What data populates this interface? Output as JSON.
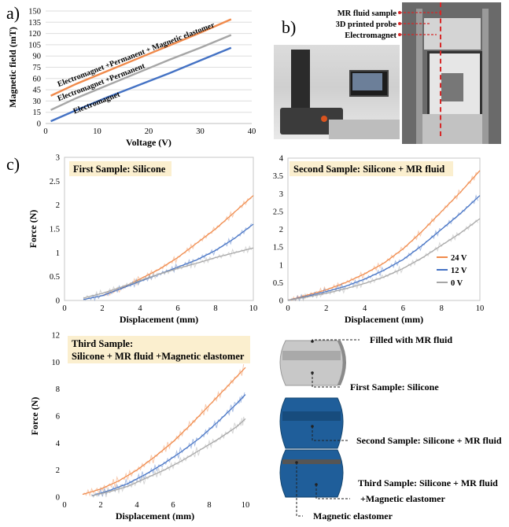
{
  "panels": {
    "a": "a)",
    "b": "b)",
    "c": "c)"
  },
  "colors": {
    "orange": "#f08a4b",
    "gray": "#a6a6a6",
    "blue": "#4472c4",
    "box": "#fbefcf",
    "samp1": "#c8c8c8",
    "samp23": "#1f5e9a"
  },
  "chart_data": [
    {
      "type": "line",
      "xlabel": "Voltage (V)",
      "ylabel": "Magnetic field (mT)",
      "xlim": [
        0,
        40
      ],
      "ylim": [
        0,
        150
      ],
      "xticks": [
        0,
        10,
        20,
        30,
        40
      ],
      "yticks": [
        0,
        15,
        30,
        45,
        60,
        75,
        90,
        105,
        120,
        135,
        150
      ],
      "series": [
        {
          "name": "Electromagnet +Permanent + Magnetic elastomer",
          "color": "#f08a4b",
          "x": [
            1,
            6,
            12,
            18,
            24,
            30,
            36
          ],
          "y": [
            37,
            53,
            70,
            87,
            104,
            121,
            139
          ]
        },
        {
          "name": "Electromagnet +Permanent",
          "color": "#a6a6a6",
          "x": [
            1,
            6,
            12,
            18,
            24,
            30,
            36
          ],
          "y": [
            18,
            34,
            51,
            68,
            85,
            101,
            118
          ]
        },
        {
          "name": "Electromagnet",
          "color": "#4472c4",
          "x": [
            1,
            6,
            12,
            18,
            24,
            30,
            36
          ],
          "y": [
            3,
            18,
            35,
            51,
            67,
            84,
            101
          ]
        }
      ]
    },
    {
      "type": "line",
      "title": "First Sample: Silicone",
      "xlabel": "Displacement (mm)",
      "ylabel": "Force (N)",
      "xlim": [
        0,
        10
      ],
      "ylim": [
        0,
        3
      ],
      "xticks": [
        0,
        2,
        4,
        6,
        8,
        10
      ],
      "yticks": [
        0,
        0.5,
        1,
        1.5,
        2,
        2.5,
        3
      ],
      "series": [
        {
          "color": "#f08a4b",
          "x": [
            2,
            3,
            4,
            5,
            6,
            7,
            8,
            9,
            10
          ],
          "y": [
            0.1,
            0.25,
            0.45,
            0.65,
            0.9,
            1.2,
            1.5,
            1.85,
            2.2
          ]
        },
        {
          "color": "#4472c4",
          "x": [
            1,
            2,
            3,
            4,
            5,
            6,
            7,
            8,
            9,
            10
          ],
          "y": [
            0.02,
            0.1,
            0.25,
            0.4,
            0.55,
            0.7,
            0.85,
            1.05,
            1.3,
            1.6
          ]
        },
        {
          "color": "#a6a6a6",
          "x": [
            1,
            2,
            3,
            4,
            5,
            6,
            7,
            8,
            9,
            10
          ],
          "y": [
            0.05,
            0.15,
            0.28,
            0.42,
            0.55,
            0.67,
            0.78,
            0.9,
            1.0,
            1.1
          ]
        }
      ]
    },
    {
      "type": "line",
      "title": "Second Sample: Silicone + MR fluid",
      "xlabel": "Displacement (mm)",
      "ylabel": "Force (N)",
      "xlim": [
        0,
        10
      ],
      "ylim": [
        0,
        4
      ],
      "xticks": [
        0,
        2,
        4,
        6,
        8,
        10
      ],
      "yticks": [
        0,
        0.5,
        1,
        1.5,
        2,
        2.5,
        3,
        3.5,
        4
      ],
      "legend": [
        "24 V",
        "12 V",
        "0 V"
      ],
      "series": [
        {
          "name": "24 V",
          "color": "#f08a4b",
          "x": [
            0,
            1,
            2,
            3,
            4,
            5,
            6,
            7,
            8,
            9,
            10
          ],
          "y": [
            0,
            0.15,
            0.3,
            0.5,
            0.75,
            1.05,
            1.45,
            1.95,
            2.5,
            3.05,
            3.65
          ]
        },
        {
          "name": "12 V",
          "color": "#4472c4",
          "x": [
            0,
            1,
            2,
            3,
            4,
            5,
            6,
            7,
            8,
            9,
            10
          ],
          "y": [
            0,
            0.12,
            0.25,
            0.4,
            0.6,
            0.85,
            1.15,
            1.55,
            2.0,
            2.45,
            2.95
          ]
        },
        {
          "name": "0 V",
          "color": "#a6a6a6",
          "x": [
            0,
            1,
            2,
            3,
            4,
            5,
            6,
            7,
            8,
            9,
            10
          ],
          "y": [
            0,
            0.1,
            0.2,
            0.33,
            0.48,
            0.66,
            0.9,
            1.2,
            1.55,
            1.9,
            2.3
          ]
        }
      ]
    },
    {
      "type": "line",
      "title": "Third Sample:",
      "title2": "Silicone + MR fluid +Magnetic elastomer",
      "xlabel": "Displacement (mm)",
      "ylabel": "Force (N)",
      "xlim": [
        0,
        10
      ],
      "ylim": [
        0,
        12
      ],
      "xticks": [
        0,
        2,
        4,
        6,
        8,
        10
      ],
      "yticks": [
        0,
        2,
        4,
        6,
        8,
        10,
        12
      ],
      "series": [
        {
          "color": "#f08a4b",
          "x": [
            1,
            2,
            3,
            4,
            5,
            6,
            7,
            8,
            9,
            10
          ],
          "y": [
            0.2,
            0.6,
            1.2,
            2.0,
            3.0,
            4.1,
            5.4,
            6.8,
            8.2,
            9.6
          ]
        },
        {
          "color": "#4472c4",
          "x": [
            1.5,
            2.5,
            3.5,
            4.5,
            5.5,
            6.5,
            7.5,
            8.5,
            9.5,
            10
          ],
          "y": [
            0.1,
            0.5,
            1.0,
            1.7,
            2.5,
            3.4,
            4.4,
            5.6,
            6.9,
            7.6
          ]
        },
        {
          "color": "#a6a6a6",
          "x": [
            1.5,
            2.5,
            3.5,
            4.5,
            5.5,
            6.5,
            7.5,
            8.5,
            9.5,
            10
          ],
          "y": [
            0.1,
            0.4,
            0.8,
            1.4,
            2.0,
            2.7,
            3.5,
            4.3,
            5.2,
            5.8
          ]
        }
      ]
    }
  ],
  "photo_labels": [
    "MR fluid sample",
    "3D printed probe",
    "Electromagnet"
  ],
  "sample_labels": {
    "filled": "Filled with MR fluid",
    "first": "First Sample: Silicone",
    "second": "Second Sample: Silicone + MR fluid",
    "third1": "Third Sample: Silicone + MR fluid",
    "third2": "+Magnetic elastomer",
    "elastomer": "Magnetic elastomer"
  }
}
